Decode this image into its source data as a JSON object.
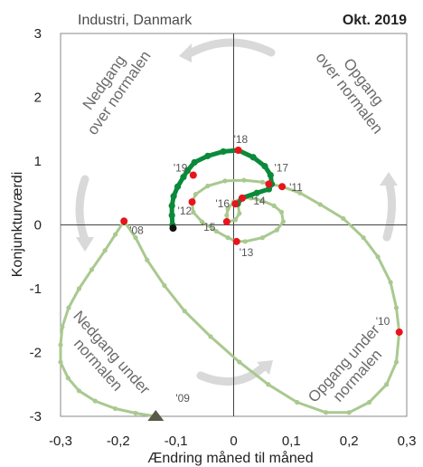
{
  "header": {
    "subtitle": "Industri, Danmark",
    "date_label": "Okt. 2019"
  },
  "quadrants": {
    "top_left": [
      "Nedgang",
      "over normalen"
    ],
    "top_right": [
      "Opgang",
      "over normalen"
    ],
    "bottom_left": [
      "Nedgang under",
      "normalen"
    ],
    "bottom_right": [
      "Opgang under",
      "normalen"
    ]
  },
  "colors": {
    "past": "#a9c98f",
    "recent": "#0a8a3a",
    "year_marker": "#e8141c",
    "end_marker": "#111111",
    "start_marker": "#5a5a4a",
    "arrows": "#d9d9d9",
    "frame": "#888888"
  },
  "chart_data": {
    "type": "scatter",
    "xlabel": "Ændring måned til måned",
    "ylabel": "Konjunkturværdi",
    "xlim": [
      -0.3,
      0.3
    ],
    "ylim": [
      -3,
      3
    ],
    "x_ticks": [
      "-0,3",
      "-0,2",
      "-0,1",
      "0",
      "0,1",
      "0,2",
      "0,3"
    ],
    "y_ticks": [
      "3",
      "2",
      "1",
      "0",
      "-1",
      "-2",
      "-3"
    ],
    "grid": false,
    "series": [
      {
        "role": "past",
        "points": [
          [
            -0.135,
            -3.0
          ],
          [
            -0.17,
            -2.95
          ],
          [
            -0.205,
            -2.88
          ],
          [
            -0.24,
            -2.76
          ],
          [
            -0.268,
            -2.6
          ],
          [
            -0.287,
            -2.4
          ],
          [
            -0.3,
            -2.15
          ],
          [
            -0.3,
            -1.88
          ],
          [
            -0.297,
            -1.6
          ],
          [
            -0.286,
            -1.3
          ],
          [
            -0.268,
            -1.0
          ],
          [
            -0.246,
            -0.7
          ],
          [
            -0.223,
            -0.4
          ],
          [
            -0.205,
            -0.15
          ],
          [
            -0.19,
            0.06
          ],
          [
            -0.17,
            -0.2
          ],
          [
            -0.15,
            -0.55
          ],
          [
            -0.12,
            -0.95
          ],
          [
            -0.085,
            -1.35
          ],
          [
            -0.04,
            -1.75
          ],
          [
            0.01,
            -2.15
          ],
          [
            0.06,
            -2.5
          ],
          [
            0.11,
            -2.78
          ],
          [
            0.16,
            -2.94
          ],
          [
            0.2,
            -2.94
          ],
          [
            0.235,
            -2.78
          ],
          [
            0.265,
            -2.5
          ],
          [
            0.282,
            -2.15
          ],
          [
            0.287,
            -1.68
          ],
          [
            0.282,
            -1.3
          ],
          [
            0.272,
            -0.9
          ],
          [
            0.25,
            -0.5
          ],
          [
            0.225,
            -0.2
          ],
          [
            0.19,
            0.1
          ],
          [
            0.15,
            0.32
          ],
          [
            0.115,
            0.5
          ],
          [
            0.084,
            0.6
          ],
          [
            0.05,
            0.67
          ],
          [
            0.018,
            0.7
          ],
          [
            -0.015,
            0.69
          ],
          [
            -0.045,
            0.61
          ],
          [
            -0.066,
            0.48
          ],
          [
            -0.072,
            0.36
          ],
          [
            -0.07,
            0.2
          ],
          [
            -0.055,
            0.05
          ],
          [
            -0.03,
            -0.1
          ],
          [
            -0.01,
            -0.2
          ],
          [
            0.005,
            -0.26
          ],
          [
            0.02,
            -0.26
          ],
          [
            0.05,
            -0.2
          ],
          [
            0.075,
            -0.08
          ],
          [
            0.086,
            0.05
          ],
          [
            0.083,
            0.2
          ],
          [
            0.07,
            0.3
          ],
          [
            0.05,
            0.38
          ],
          [
            0.03,
            0.42
          ],
          [
            0.015,
            0.42
          ],
          [
            0.0,
            0.36
          ],
          [
            -0.01,
            0.25
          ],
          [
            -0.012,
            0.15
          ],
          [
            -0.01,
            0.05
          ],
          [
            0.003,
            0.08
          ],
          [
            0.01,
            0.18
          ],
          [
            0.007,
            0.33
          ]
        ]
      },
      {
        "role": "recent",
        "points": [
          [
            0.007,
            0.33
          ],
          [
            0.014,
            0.42
          ],
          [
            0.04,
            0.5
          ],
          [
            0.061,
            0.56
          ],
          [
            0.066,
            0.64
          ],
          [
            0.064,
            0.78
          ],
          [
            0.054,
            0.92
          ],
          [
            0.034,
            1.06
          ],
          [
            0.008,
            1.17
          ],
          [
            -0.018,
            1.15
          ],
          [
            -0.045,
            1.08
          ],
          [
            -0.068,
            0.98
          ],
          [
            -0.08,
            0.85
          ],
          [
            -0.087,
            0.75
          ],
          [
            -0.097,
            0.6
          ],
          [
            -0.104,
            0.45
          ],
          [
            -0.107,
            0.3
          ],
          [
            -0.107,
            0.15
          ],
          [
            -0.106,
            0.0
          ],
          [
            -0.105,
            -0.05
          ]
        ]
      }
    ],
    "year_markers": [
      {
        "label": "'08",
        "x": -0.19,
        "y": 0.06
      },
      {
        "label": "'09",
        "x": -0.135,
        "y": -3.0
      },
      {
        "label": "'10",
        "x": 0.287,
        "y": -1.68
      },
      {
        "label": "'11",
        "x": 0.084,
        "y": 0.6
      },
      {
        "label": "'12",
        "x": -0.072,
        "y": 0.36
      },
      {
        "label": "'13",
        "x": 0.005,
        "y": -0.26
      },
      {
        "label": "'14",
        "x": 0.015,
        "y": 0.42
      },
      {
        "label": "'15",
        "x": -0.012,
        "y": 0.05
      },
      {
        "label": "'16",
        "x": 0.003,
        "y": 0.33
      },
      {
        "label": "'17",
        "x": 0.061,
        "y": 0.64
      },
      {
        "label": "'18",
        "x": 0.008,
        "y": 1.17
      },
      {
        "label": "'19",
        "x": -0.07,
        "y": 0.78
      }
    ],
    "end_point": {
      "x": -0.105,
      "y": -0.05
    }
  }
}
